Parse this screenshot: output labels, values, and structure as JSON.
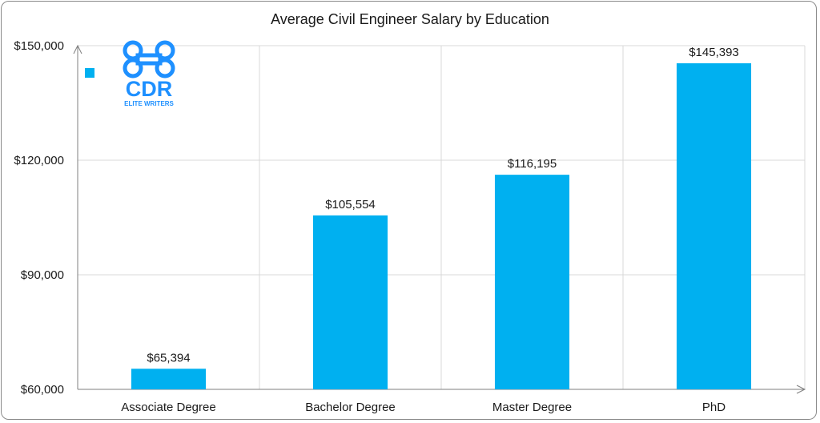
{
  "colors": {
    "bar": "#00B0F0",
    "grid": "#d9d9d9",
    "axis": "#7f7f7f",
    "logo": "#1E90FF"
  },
  "logo": {
    "name": "CDR",
    "tagline": "ELITE WRITERS"
  },
  "chart_data": {
    "type": "bar",
    "title": "Average Civil Engineer Salary by Education",
    "xlabel": "",
    "ylabel": "",
    "categories": [
      "Associate Degree",
      "Bachelor Degree",
      "Master Degree",
      "PhD"
    ],
    "values": [
      65394,
      105554,
      116195,
      145393
    ],
    "data_labels": [
      "$65,394",
      "$105,554",
      "$116,195",
      "$145,393"
    ],
    "ylim": [
      60000,
      150000
    ],
    "yticks": [
      60000,
      90000,
      120000,
      150000
    ],
    "ytick_labels": [
      "$60,000",
      "$90,000",
      "$120,000",
      "$150,000"
    ],
    "grid": true,
    "legend": "top-left",
    "legend_entries": [
      ""
    ]
  }
}
